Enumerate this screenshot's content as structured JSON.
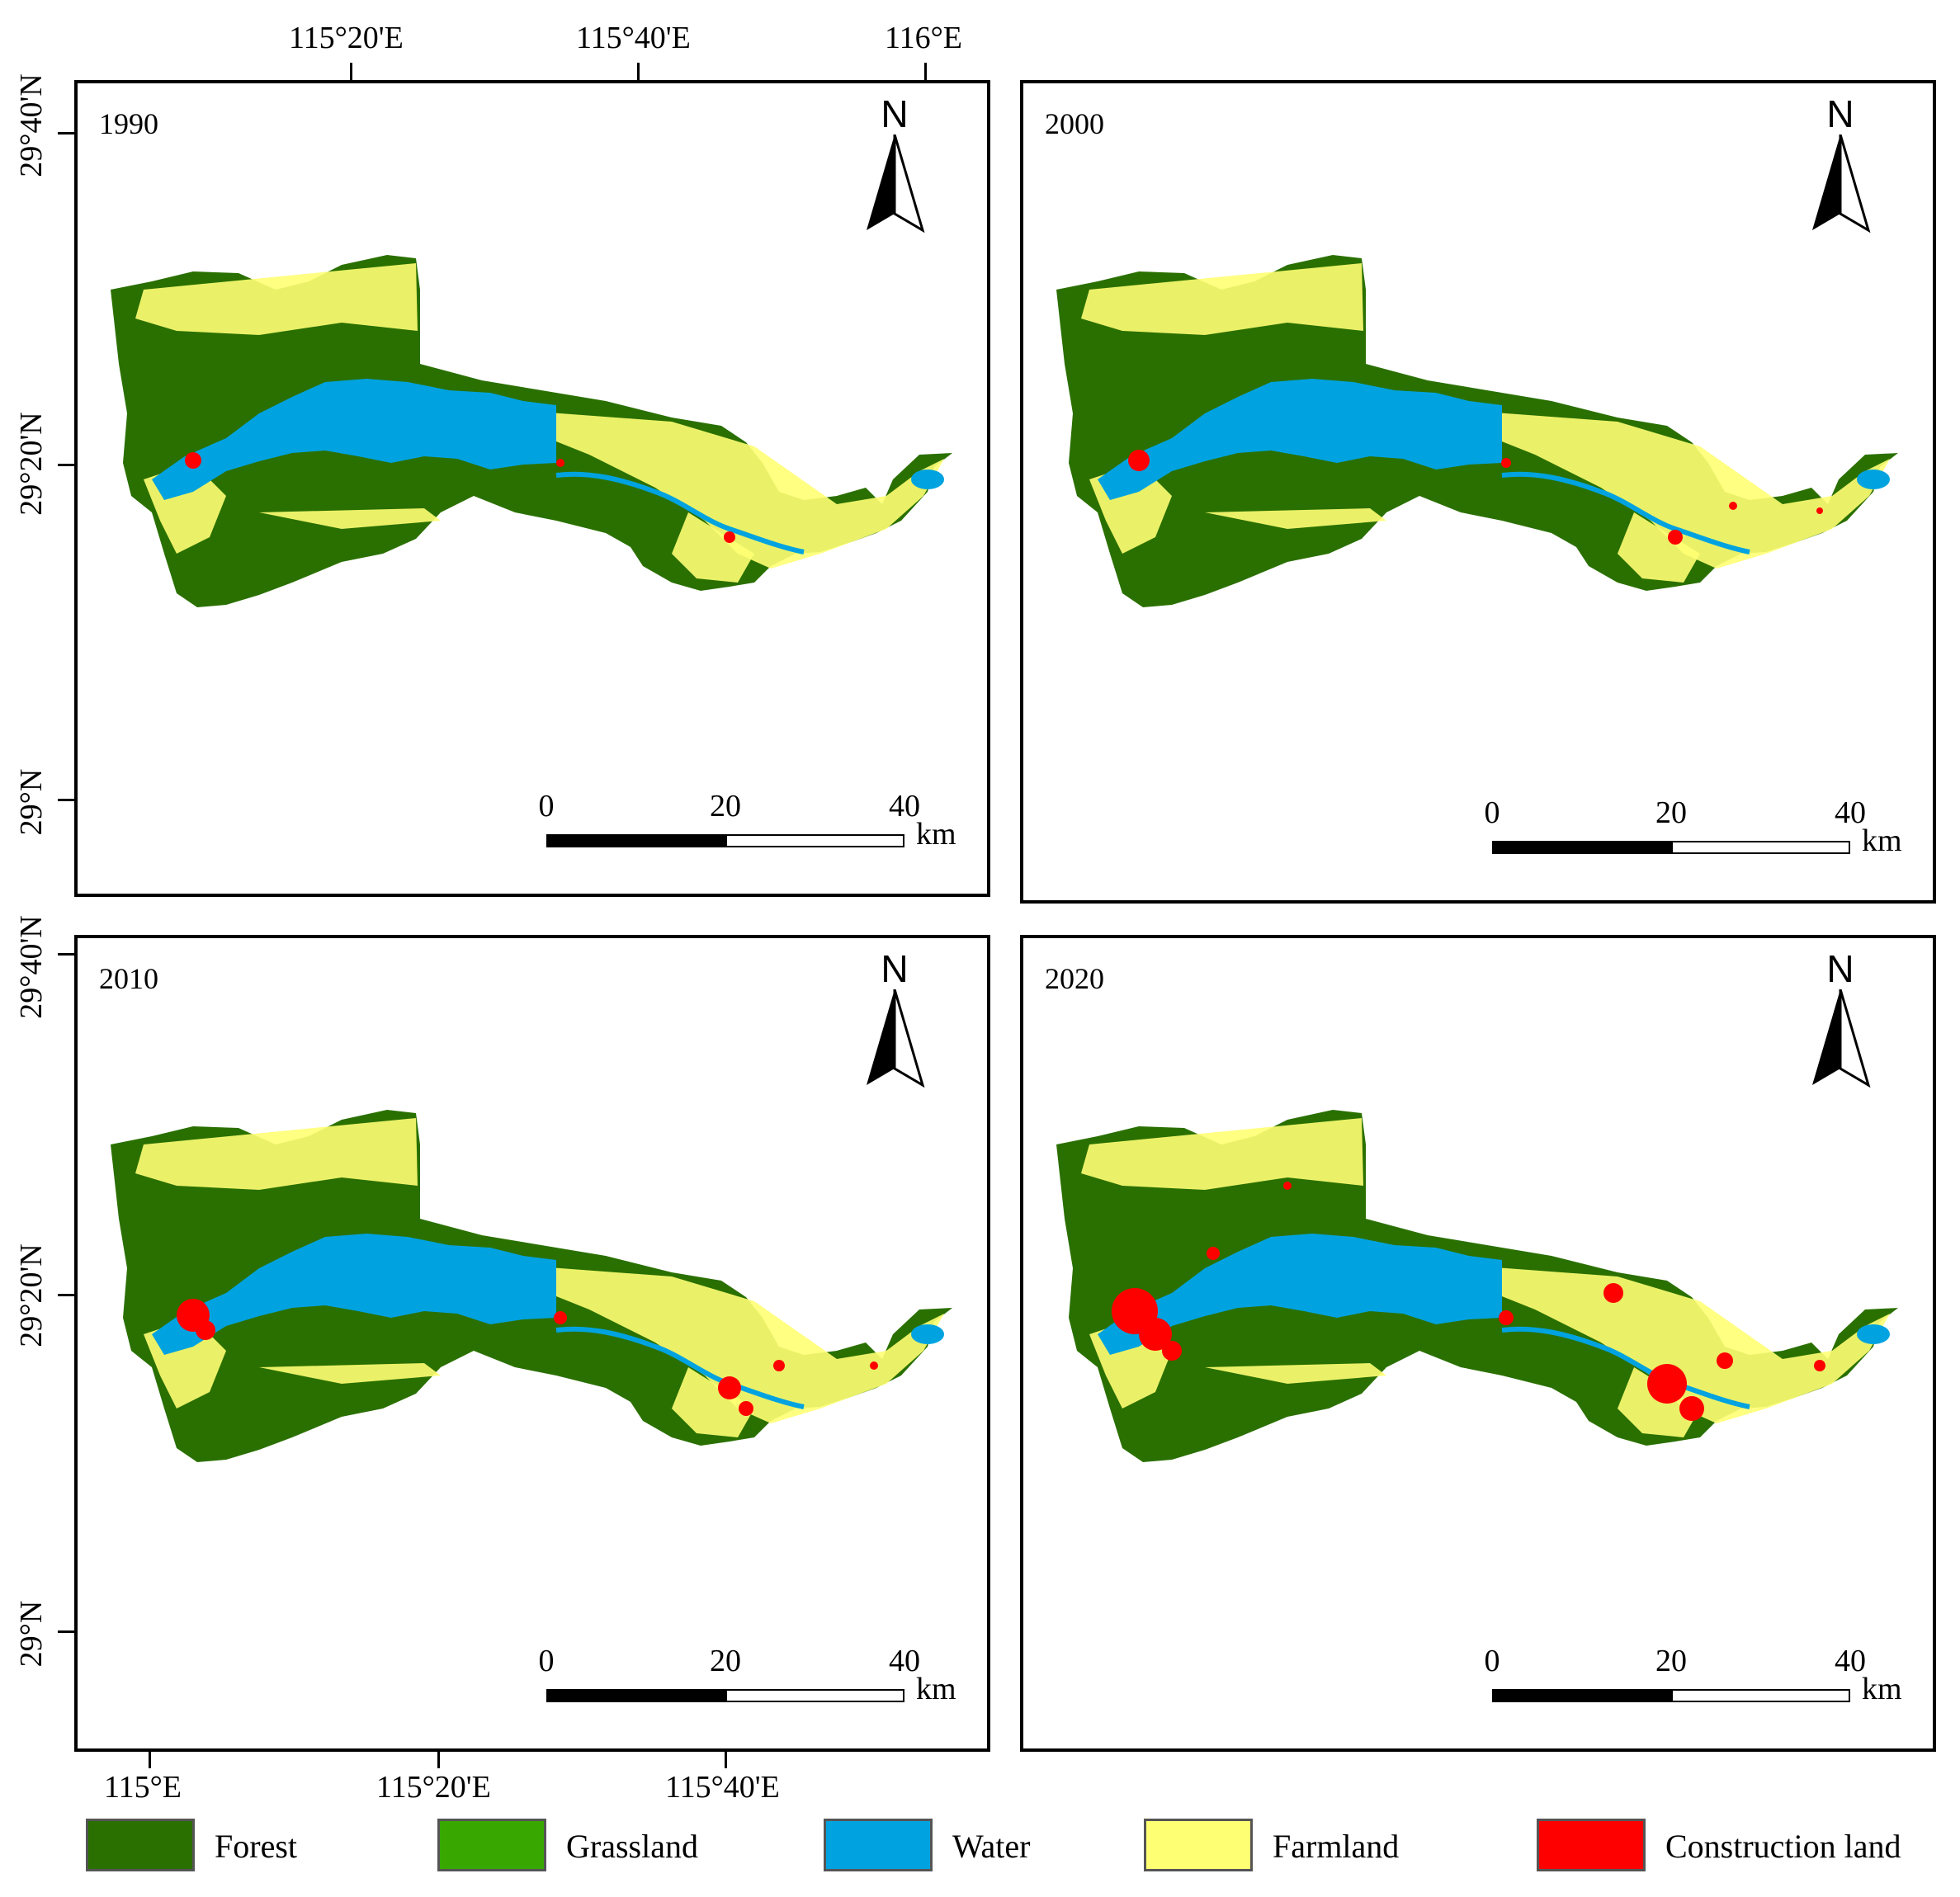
{
  "top_lon_labels": [
    "115°20'E",
    "115°40'E",
    "116°E"
  ],
  "bottom_lon_labels": [
    "115°E",
    "115°20'E",
    "115°40'E"
  ],
  "top_lat_labels": [
    "29°40'N",
    "29°20'N",
    "29°N"
  ],
  "bottom_lat_labels": [
    "29°40'N",
    "29°20'N",
    "29°N"
  ],
  "north_letter": "N",
  "scale": {
    "ticks": [
      "0",
      "20",
      "40"
    ],
    "unit": "km"
  },
  "panels": [
    {
      "year": "1990",
      "construction_level": 1
    },
    {
      "year": "2000",
      "construction_level": 2
    },
    {
      "year": "2010",
      "construction_level": 3
    },
    {
      "year": "2020",
      "construction_level": 4
    }
  ],
  "colors": {
    "forest": "#2a7000",
    "grassland": "#38a800",
    "water": "#00a3e0",
    "farmland": "#ffff73",
    "construction": "#ff0000"
  },
  "legend": [
    {
      "label": "Forest",
      "color": "#2a7000"
    },
    {
      "label": "Grassland",
      "color": "#38a800"
    },
    {
      "label": "Water",
      "color": "#00a3e0"
    },
    {
      "label": "Farmland",
      "color": "#ffff73"
    },
    {
      "label": "Construction land",
      "color": "#ff0000"
    }
  ]
}
